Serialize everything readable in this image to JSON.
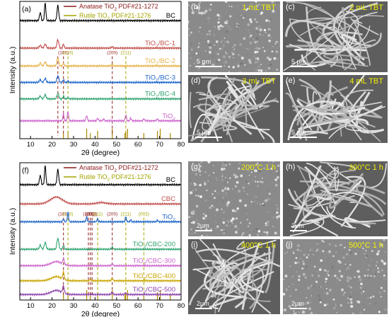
{
  "colors": {
    "anatase": "#8b1a1a",
    "rutile": "#a3a300",
    "ref_peak": "#b08a00",
    "sem_label": "#f2f200"
  },
  "chart_data": [
    {
      "type": "line",
      "panel": "(a)",
      "xlabel": "2θ (degree)",
      "ylabel": "Intensity (a.u.)",
      "xlim": [
        5,
        80
      ],
      "xticks": [
        10,
        20,
        30,
        40,
        50,
        60,
        70,
        80
      ],
      "legend_position": "top-right",
      "legend": [
        {
          "label_main": "Anatase TiO",
          "sub": "2",
          "label_rest": " PDF#21-1272",
          "color": "#8b1a1a"
        },
        {
          "label_main": "Rutile TiO",
          "sub": "2",
          "label_rest": " PDF#21-1276",
          "color": "#a3a300"
        }
      ],
      "series": [
        {
          "label_main": "BC",
          "sub": "",
          "label_rest": "",
          "color": "#000000",
          "offset": 0.86,
          "peaks": [
            [
              14.5,
              0.06,
              0.5
            ],
            [
              16.8,
              0.13,
              0.45
            ],
            [
              22.7,
              0.11,
              0.55
            ]
          ]
        },
        {
          "label_main": "TiO",
          "sub": "2",
          "label_rest": "/BC-1",
          "color": "#c0504d",
          "offset": 0.66,
          "peaks": [
            [
              14.5,
              0.02,
              0.6
            ],
            [
              16.8,
              0.03,
              0.6
            ],
            [
              22.7,
              0.06,
              0.6
            ],
            [
              25.3,
              0.03,
              0.4
            ],
            [
              48.0,
              0.01,
              0.5
            ]
          ]
        },
        {
          "label_main": "TiO",
          "sub": "2",
          "label_rest": "/BC-2",
          "color": "#e6b34a",
          "offset": 0.53,
          "peaks": [
            [
              14.5,
              0.02,
              0.6
            ],
            [
              16.8,
              0.03,
              0.6
            ],
            [
              22.7,
              0.06,
              0.6
            ],
            [
              25.3,
              0.02,
              0.4
            ],
            [
              48.0,
              0.01,
              0.5
            ]
          ]
        },
        {
          "label_main": "TiO",
          "sub": "2",
          "label_rest": "/BC-3",
          "color": "#1f66c9",
          "offset": 0.41,
          "peaks": [
            [
              14.5,
              0.02,
              0.6
            ],
            [
              16.8,
              0.03,
              0.6
            ],
            [
              22.7,
              0.05,
              0.6
            ],
            [
              25.3,
              0.02,
              0.4
            ],
            [
              27.4,
              0.01,
              0.4
            ]
          ]
        },
        {
          "label_main": "TiO",
          "sub": "2",
          "label_rest": "/BC-4",
          "color": "#2ea36f",
          "offset": 0.29,
          "peaks": [
            [
              14.5,
              0.02,
              0.6
            ],
            [
              16.8,
              0.03,
              0.6
            ],
            [
              22.7,
              0.04,
              0.6
            ],
            [
              25.3,
              0.02,
              0.4
            ],
            [
              27.4,
              0.01,
              0.4
            ]
          ]
        },
        {
          "label_main": "TiO",
          "sub": "2",
          "label_rest": "",
          "color": "#cc66cc",
          "offset": 0.13,
          "peaks": [
            [
              25.3,
              0.05,
              0.4
            ],
            [
              27.4,
              0.07,
              0.4
            ],
            [
              36.1,
              0.04,
              0.4
            ],
            [
              41.2,
              0.02,
              0.4
            ],
            [
              44.0,
              0.015,
              0.4
            ],
            [
              54.3,
              0.045,
              0.4
            ],
            [
              56.6,
              0.02,
              0.4
            ],
            [
              62.7,
              0.015,
              0.4
            ],
            [
              69.0,
              0.015,
              0.4
            ]
          ]
        }
      ],
      "reference_lines": [
        {
          "x": 22.7,
          "label": "",
          "color": "#8b1a1a"
        },
        {
          "x": 25.3,
          "label": "(101)",
          "color": "#8b1a1a"
        },
        {
          "x": 27.4,
          "label": "(110)",
          "color": "#a3a300"
        },
        {
          "x": 48.0,
          "label": "(200)",
          "color": "#8b1a1a"
        },
        {
          "x": 54.3,
          "label": "(211)",
          "color": "#a3a300"
        }
      ],
      "ref_ticks": [
        25.3,
        27.4,
        36.1,
        37.8,
        41.2,
        48.0,
        53.9,
        54.3,
        55.1,
        62.7,
        69.0,
        70.3,
        75.0
      ]
    },
    {
      "type": "line",
      "panel": "(f)",
      "xlabel": "2θ (degree)",
      "ylabel": "Intensity (a.u.)",
      "xlim": [
        5,
        80
      ],
      "xticks": [
        10,
        20,
        30,
        40,
        50,
        60,
        70,
        80
      ],
      "legend_position": "top-right",
      "legend": [
        {
          "label_main": "Anatase TiO",
          "sub": "2",
          "label_rest": " PDF#21-1272",
          "color": "#8b1a1a"
        },
        {
          "label_main": "Rutile TiO",
          "sub": "2",
          "label_rest": " PDF#21-1276",
          "color": "#a3a300"
        }
      ],
      "series": [
        {
          "label_main": "BC",
          "sub": "",
          "label_rest": "",
          "color": "#000000",
          "offset": 0.84,
          "peaks": [
            [
              14.5,
              0.07,
              0.5
            ],
            [
              16.8,
              0.14,
              0.45
            ],
            [
              22.7,
              0.11,
              0.55
            ]
          ]
        },
        {
          "label_main": "CBC",
          "sub": "",
          "label_rest": "",
          "color": "#c0504d",
          "offset": 0.7,
          "peaks": [
            [
              22.0,
              0.05,
              4.0
            ],
            [
              43.0,
              0.01,
              3.0
            ]
          ]
        },
        {
          "label_main": "TiO",
          "sub": "2",
          "label_rest": "",
          "color": "#1f66c9",
          "offset": 0.57,
          "peaks": [
            [
              25.3,
              0.02,
              0.4
            ],
            [
              27.4,
              0.07,
              0.4
            ],
            [
              36.1,
              0.035,
              0.4
            ],
            [
              41.2,
              0.02,
              0.4
            ],
            [
              54.3,
              0.035,
              0.4
            ],
            [
              56.6,
              0.015,
              0.4
            ],
            [
              69.0,
              0.01,
              0.4
            ]
          ]
        },
        {
          "label_main": "TiO",
          "sub": "2",
          "label_rest": "/CBC-200",
          "color": "#2ea36f",
          "offset": 0.37,
          "peaks": [
            [
              14.5,
              0.03,
              0.6
            ],
            [
              16.8,
              0.05,
              0.6
            ],
            [
              22.7,
              0.08,
              0.6
            ],
            [
              25.3,
              0.03,
              0.4
            ],
            [
              48.0,
              0.015,
              0.5
            ]
          ]
        },
        {
          "label_main": "TiO",
          "sub": "2",
          "label_rest": "/CBC-300",
          "color": "#cc66cc",
          "offset": 0.25,
          "peaks": [
            [
              22.0,
              0.03,
              3.5
            ],
            [
              25.3,
              0.04,
              0.5
            ],
            [
              48.0,
              0.012,
              0.5
            ]
          ]
        },
        {
          "label_main": "TiO",
          "sub": "2",
          "label_rest": "/CBC-400",
          "color": "#c9a400",
          "offset": 0.14,
          "peaks": [
            [
              22.0,
              0.03,
              3.5
            ],
            [
              25.3,
              0.05,
              0.5
            ],
            [
              37.8,
              0.01,
              0.4
            ],
            [
              48.0,
              0.015,
              0.5
            ]
          ]
        },
        {
          "label_main": "TiO",
          "sub": "2",
          "label_rest": "/CBC-500",
          "color": "#8e44ad",
          "offset": 0.04,
          "peaks": [
            [
              22.0,
              0.03,
              3.5
            ],
            [
              25.3,
              0.05,
              0.5
            ],
            [
              48.0,
              0.018,
              0.5
            ],
            [
              54.0,
              0.01,
              0.5
            ]
          ]
        }
      ],
      "reference_lines": [
        {
          "x": 25.3,
          "label": "(101)",
          "color": "#8b1a1a"
        },
        {
          "x": 27.4,
          "label": "(110)",
          "color": "#a3a300"
        },
        {
          "x": 36.9,
          "label": "(103)",
          "color": "#8b1a1a"
        },
        {
          "x": 37.8,
          "label": "(004)",
          "color": "#8b1a1a"
        },
        {
          "x": 38.6,
          "label": "(112)",
          "color": "#8b1a1a"
        },
        {
          "x": 41.2,
          "label": "(111)",
          "color": "#a3a300"
        },
        {
          "x": 48.0,
          "label": "(200)",
          "color": "#8b1a1a"
        },
        {
          "x": 54.3,
          "label": "(211)",
          "color": "#a3a300"
        },
        {
          "x": 62.7,
          "label": "(002)",
          "color": "#a3a300"
        }
      ],
      "ref_ticks": [
        25.3,
        27.4,
        36.1,
        37.8,
        41.2,
        48.0,
        53.9,
        54.3,
        55.1,
        62.7,
        69.0,
        70.3,
        75.0
      ]
    }
  ],
  "sem_panels": [
    {
      "id": "(b)",
      "label": "1 mL TBT",
      "scale": "5 μm",
      "texture": "grain"
    },
    {
      "id": "(c)",
      "label": "2 mL TBT",
      "scale": "5 μm",
      "texture": "fiber"
    },
    {
      "id": "(d)",
      "label": "3 mL TBT",
      "scale": "5 μm",
      "texture": "fiber"
    },
    {
      "id": "(e)",
      "label": "4 mL TBT",
      "scale": "5 μm",
      "texture": "fiber"
    },
    {
      "id": "(g)",
      "label": "200°C 1 h",
      "scale": "2μm",
      "texture": "grain"
    },
    {
      "id": "(h)",
      "label": "300°C 1 h",
      "scale": "2μm",
      "texture": "fiber"
    },
    {
      "id": "(i)",
      "label": "400°C 1 h",
      "scale": "2μm",
      "texture": "fiber"
    },
    {
      "id": "(j)",
      "label": "500°C 1 h",
      "scale": "2μm",
      "texture": "grain"
    }
  ]
}
